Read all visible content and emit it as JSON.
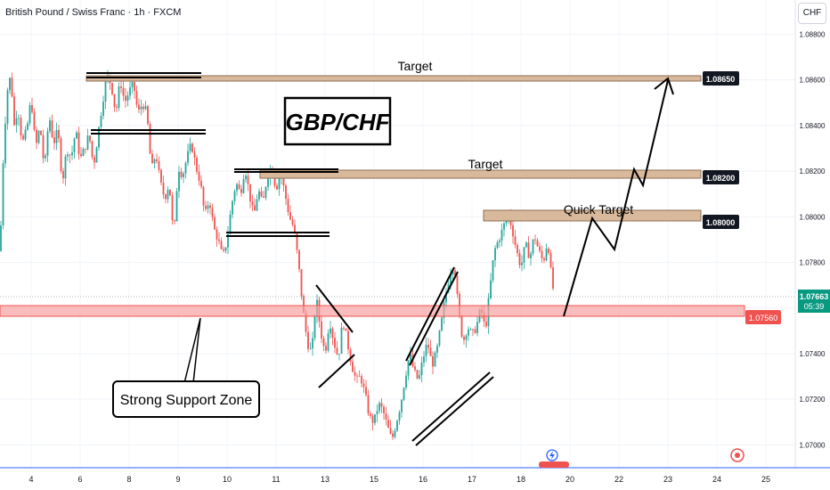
{
  "header": {
    "symbol": "British Pound / Swiss Franc · 1h · FXCM",
    "currency": "CHF"
  },
  "chart_data": {
    "type": "candlestick",
    "title": "GBP/CHF",
    "price_ticks": [
      "1.08800",
      "1.08600",
      "1.08400",
      "1.08200",
      "1.08000",
      "1.07800",
      "1.07600",
      "1.07400",
      "1.07200",
      "1.07000"
    ],
    "date_ticks": [
      "4",
      "6",
      "8",
      "9",
      "10",
      "11",
      "13",
      "15",
      "16",
      "17",
      "18",
      "20",
      "22",
      "23",
      "24",
      "25"
    ],
    "ylim": [
      1.069,
      1.0895
    ],
    "current_price": {
      "value": "1.07663",
      "countdown": "05:39"
    },
    "support_zone": {
      "label": "Strong Support Zone",
      "price": "1.07560",
      "low": 1.0755,
      "high": 1.076
    },
    "targets": [
      {
        "label": "Target",
        "price": "1.08650",
        "value": 1.0865
      },
      {
        "label": "Target",
        "price": "1.08200",
        "value": 1.082
      },
      {
        "label": "Quick Target",
        "price": "1.08000",
        "value": 1.08
      }
    ],
    "ohlc_anchors": [
      [
        0,
        1.0785
      ],
      [
        4,
        1.083
      ],
      [
        8,
        1.0855
      ],
      [
        12,
        1.0862
      ],
      [
        16,
        1.084
      ],
      [
        20,
        1.0848
      ],
      [
        25,
        1.0832
      ],
      [
        30,
        1.0838
      ],
      [
        35,
        1.0852
      ],
      [
        40,
        1.083
      ],
      [
        45,
        1.084
      ],
      [
        50,
        1.082
      ],
      [
        55,
        1.0845
      ],
      [
        60,
        1.0832
      ],
      [
        65,
        1.0838
      ],
      [
        70,
        1.0815
      ],
      [
        75,
        1.083
      ],
      [
        80,
        1.0826
      ],
      [
        85,
        1.0838
      ],
      [
        90,
        1.0825
      ],
      [
        95,
        1.083
      ],
      [
        100,
        1.0836
      ],
      [
        105,
        1.0822
      ],
      [
        110,
        1.0836
      ],
      [
        115,
        1.085
      ],
      [
        120,
        1.0862
      ],
      [
        125,
        1.0858
      ],
      [
        130,
        1.0845
      ],
      [
        135,
        1.086
      ],
      [
        140,
        1.085
      ],
      [
        145,
        1.0855
      ],
      [
        150,
        1.0858
      ],
      [
        155,
        1.0845
      ],
      [
        160,
        1.085
      ],
      [
        165,
        1.0845
      ],
      [
        170,
        1.082
      ],
      [
        175,
        1.0828
      ],
      [
        180,
        1.0815
      ],
      [
        185,
        1.0808
      ],
      [
        190,
        1.0815
      ],
      [
        195,
        1.079
      ],
      [
        200,
        1.0822
      ],
      [
        205,
        1.0818
      ],
      [
        210,
        1.0826
      ],
      [
        215,
        1.0832
      ],
      [
        220,
        1.0822
      ],
      [
        225,
        1.0815
      ],
      [
        230,
        1.08
      ],
      [
        235,
        1.0808
      ],
      [
        240,
        1.0795
      ],
      [
        245,
        1.079
      ],
      [
        250,
        1.0782
      ],
      [
        255,
        1.079
      ],
      [
        260,
        1.0805
      ],
      [
        265,
        1.0815
      ],
      [
        270,
        1.081
      ],
      [
        275,
        1.0822
      ],
      [
        280,
        1.081
      ],
      [
        285,
        1.08
      ],
      [
        290,
        1.0812
      ],
      [
        295,
        1.0805
      ],
      [
        300,
        1.0818
      ],
      [
        305,
        1.0822
      ],
      [
        310,
        1.0812
      ],
      [
        315,
        1.082
      ],
      [
        320,
        1.081
      ],
      [
        325,
        1.08
      ],
      [
        330,
        1.0795
      ],
      [
        335,
        1.078
      ],
      [
        340,
        1.076
      ],
      [
        345,
        1.0745
      ],
      [
        350,
        1.074
      ],
      [
        355,
        1.0765
      ],
      [
        360,
        1.075
      ],
      [
        365,
        1.074
      ],
      [
        370,
        1.0755
      ],
      [
        375,
        1.0745
      ],
      [
        380,
        1.0738
      ],
      [
        385,
        1.0755
      ],
      [
        390,
        1.0745
      ],
      [
        395,
        1.0735
      ],
      [
        400,
        1.0728
      ],
      [
        405,
        1.073
      ],
      [
        410,
        1.0722
      ],
      [
        415,
        1.0712
      ],
      [
        420,
        1.071
      ],
      [
        425,
        1.0718
      ],
      [
        430,
        1.0715
      ],
      [
        435,
        1.0708
      ],
      [
        440,
        1.0702
      ],
      [
        445,
        1.071
      ],
      [
        450,
        1.0718
      ],
      [
        455,
        1.073
      ],
      [
        460,
        1.074
      ],
      [
        465,
        1.0732
      ],
      [
        470,
        1.0728
      ],
      [
        475,
        1.0738
      ],
      [
        480,
        1.0745
      ],
      [
        485,
        1.0735
      ],
      [
        490,
        1.074
      ],
      [
        495,
        1.0752
      ],
      [
        500,
        1.0765
      ],
      [
        505,
        1.0775
      ],
      [
        510,
        1.078
      ],
      [
        515,
        1.0758
      ],
      [
        520,
        1.0745
      ],
      [
        525,
        1.0752
      ],
      [
        530,
        1.0748
      ],
      [
        535,
        1.0752
      ],
      [
        540,
        1.076
      ],
      [
        545,
        1.075
      ],
      [
        550,
        1.0768
      ],
      [
        555,
        1.0785
      ],
      [
        560,
        1.079
      ],
      [
        565,
        1.0795
      ],
      [
        570,
        1.0802
      ],
      [
        575,
        1.0795
      ],
      [
        580,
        1.0785
      ],
      [
        585,
        1.0778
      ],
      [
        590,
        1.0788
      ],
      [
        595,
        1.0782
      ],
      [
        600,
        1.0792
      ],
      [
        605,
        1.0785
      ],
      [
        610,
        1.078
      ],
      [
        615,
        1.079
      ],
      [
        620,
        1.077
      ],
      [
        623,
        1.0766
      ]
    ]
  },
  "axis_labels": {
    "price_1": "1.08650",
    "price_2": "1.08200",
    "price_3": "1.08000"
  },
  "colors": {
    "up": "#26a69a",
    "down": "#ef5350",
    "support_fill": "#f7a1a1",
    "support_border": "#ef5350",
    "target_fill": "#d9b99b",
    "line": "#2962ff"
  }
}
